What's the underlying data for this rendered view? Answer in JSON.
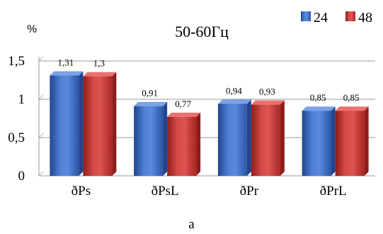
{
  "chart_data": {
    "type": "bar",
    "title": "50-60Гц",
    "ylabel": "%",
    "categories": [
      "ðPs",
      "ðPsL",
      "ðPr",
      "ðPrL"
    ],
    "series": [
      {
        "name": "24",
        "values": [
          1.31,
          0.91,
          0.94,
          0.85
        ],
        "labels": [
          "1,31",
          "0,91",
          "0,94",
          "0,85"
        ]
      },
      {
        "name": "48",
        "values": [
          1.3,
          0.77,
          0.93,
          0.85
        ],
        "labels": [
          "1,3",
          "0,77",
          "0,93",
          "0,85"
        ]
      }
    ],
    "ylim": [
      0,
      1.5
    ],
    "yticks": [
      {
        "value": 0,
        "label": "0"
      },
      {
        "value": 0.5,
        "label": "0,5"
      },
      {
        "value": 1,
        "label": "1"
      },
      {
        "value": 1.5,
        "label": "1,5"
      }
    ],
    "grid": true,
    "legend_position": "top-right",
    "colors": {
      "series_24": "#3f6fc6",
      "series_24_dark": "#1f4590",
      "series_24_light": "#7aa2e6",
      "series_48": "#cc3a38",
      "series_48_dark": "#8e1c1b",
      "series_48_light": "#e87270"
    }
  },
  "caption": "a"
}
